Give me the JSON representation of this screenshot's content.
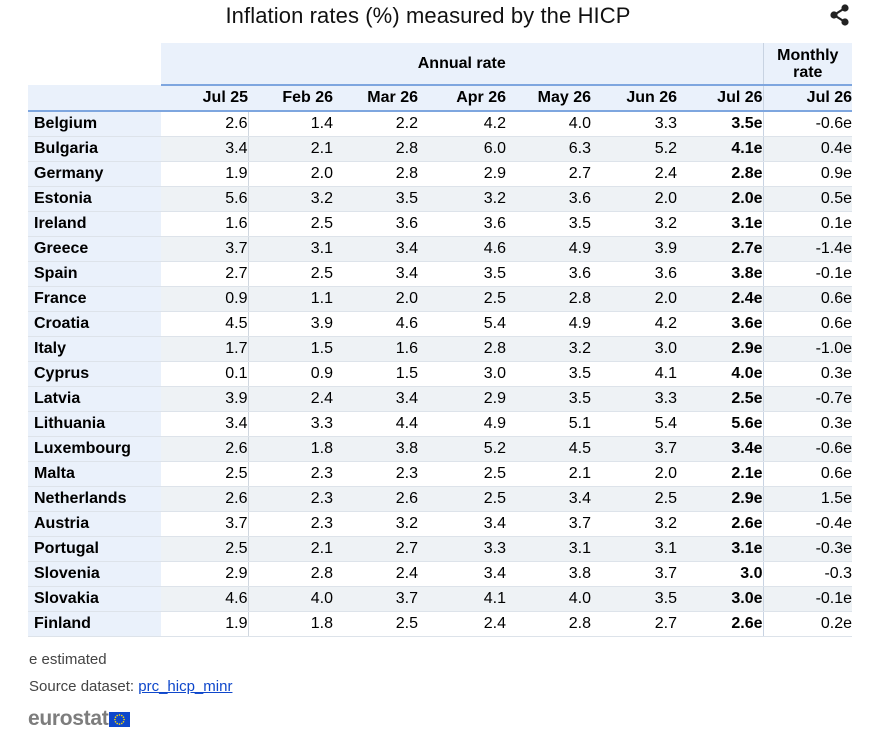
{
  "title": "Inflation rates (%) measured by the HICP",
  "share_icon": "share-icon",
  "table": {
    "group_annual": "Annual rate",
    "group_monthly": "Monthly rate",
    "columns": [
      "Jul 25",
      "Feb 26",
      "Mar 26",
      "Apr 26",
      "May 26",
      "Jun 26",
      "Jul 26",
      "Jul 26"
    ],
    "rows": [
      {
        "country": "Belgium",
        "values": [
          "2.6",
          "1.4",
          "2.2",
          "4.2",
          "4.0",
          "3.3",
          "3.5e",
          "-0.6e"
        ]
      },
      {
        "country": "Bulgaria",
        "values": [
          "3.4",
          "2.1",
          "2.8",
          "6.0",
          "6.3",
          "5.2",
          "4.1e",
          "0.4e"
        ]
      },
      {
        "country": "Germany",
        "values": [
          "1.9",
          "2.0",
          "2.8",
          "2.9",
          "2.7",
          "2.4",
          "2.8e",
          "0.9e"
        ]
      },
      {
        "country": "Estonia",
        "values": [
          "5.6",
          "3.2",
          "3.5",
          "3.2",
          "3.6",
          "2.0",
          "2.0e",
          "0.5e"
        ]
      },
      {
        "country": "Ireland",
        "values": [
          "1.6",
          "2.5",
          "3.6",
          "3.6",
          "3.5",
          "3.2",
          "3.1e",
          "0.1e"
        ]
      },
      {
        "country": "Greece",
        "values": [
          "3.7",
          "3.1",
          "3.4",
          "4.6",
          "4.9",
          "3.9",
          "2.7e",
          "-1.4e"
        ]
      },
      {
        "country": "Spain",
        "values": [
          "2.7",
          "2.5",
          "3.4",
          "3.5",
          "3.6",
          "3.6",
          "3.8e",
          "-0.1e"
        ]
      },
      {
        "country": "France",
        "values": [
          "0.9",
          "1.1",
          "2.0",
          "2.5",
          "2.8",
          "2.0",
          "2.4e",
          "0.6e"
        ]
      },
      {
        "country": "Croatia",
        "values": [
          "4.5",
          "3.9",
          "4.6",
          "5.4",
          "4.9",
          "4.2",
          "3.6e",
          "0.6e"
        ]
      },
      {
        "country": "Italy",
        "values": [
          "1.7",
          "1.5",
          "1.6",
          "2.8",
          "3.2",
          "3.0",
          "2.9e",
          "-1.0e"
        ]
      },
      {
        "country": "Cyprus",
        "values": [
          "0.1",
          "0.9",
          "1.5",
          "3.0",
          "3.5",
          "4.1",
          "4.0e",
          "0.3e"
        ]
      },
      {
        "country": "Latvia",
        "values": [
          "3.9",
          "2.4",
          "3.4",
          "2.9",
          "3.5",
          "3.3",
          "2.5e",
          "-0.7e"
        ]
      },
      {
        "country": "Lithuania",
        "values": [
          "3.4",
          "3.3",
          "4.4",
          "4.9",
          "5.1",
          "5.4",
          "5.6e",
          "0.3e"
        ]
      },
      {
        "country": "Luxembourg",
        "values": [
          "2.6",
          "1.8",
          "3.8",
          "5.2",
          "4.5",
          "3.7",
          "3.4e",
          "-0.6e"
        ]
      },
      {
        "country": "Malta",
        "values": [
          "2.5",
          "2.3",
          "2.3",
          "2.5",
          "2.1",
          "2.0",
          "2.1e",
          "0.6e"
        ]
      },
      {
        "country": "Netherlands",
        "values": [
          "2.6",
          "2.3",
          "2.6",
          "2.5",
          "3.4",
          "2.5",
          "2.9e",
          "1.5e"
        ]
      },
      {
        "country": "Austria",
        "values": [
          "3.7",
          "2.3",
          "3.2",
          "3.4",
          "3.7",
          "3.2",
          "2.6e",
          "-0.4e"
        ]
      },
      {
        "country": "Portugal",
        "values": [
          "2.5",
          "2.1",
          "2.7",
          "3.3",
          "3.1",
          "3.1",
          "3.1e",
          "-0.3e"
        ]
      },
      {
        "country": "Slovenia",
        "values": [
          "2.9",
          "2.8",
          "2.4",
          "3.4",
          "3.8",
          "3.7",
          "3.0",
          "-0.3"
        ]
      },
      {
        "country": "Slovakia",
        "values": [
          "4.6",
          "4.0",
          "3.7",
          "4.1",
          "4.0",
          "3.5",
          "3.0e",
          "-0.1e"
        ]
      },
      {
        "country": "Finland",
        "values": [
          "1.9",
          "1.8",
          "2.5",
          "2.4",
          "2.8",
          "2.7",
          "2.6e",
          "0.2e"
        ]
      }
    ]
  },
  "chart_data": {
    "type": "table",
    "title": "Inflation rates (%) measured by the HICP",
    "column_groups": [
      {
        "name": "Annual rate",
        "columns": [
          "Jul 25",
          "Feb 26",
          "Mar 26",
          "Apr 26",
          "May 26",
          "Jun 26",
          "Jul 26"
        ]
      },
      {
        "name": "Monthly rate",
        "columns": [
          "Jul 26"
        ]
      }
    ],
    "row_labels": [
      "Belgium",
      "Bulgaria",
      "Germany",
      "Estonia",
      "Ireland",
      "Greece",
      "Spain",
      "France",
      "Croatia",
      "Italy",
      "Cyprus",
      "Latvia",
      "Lithuania",
      "Luxembourg",
      "Malta",
      "Netherlands",
      "Austria",
      "Portugal",
      "Slovenia",
      "Slovakia",
      "Finland"
    ],
    "flag_note": "e estimated"
  },
  "footer": {
    "note": "e estimated",
    "source_prefix": "Source dataset: ",
    "source_link": "prc_hicp_minr",
    "logo_text": "eurostat"
  },
  "colors": {
    "header_bg": "#eaf1fb",
    "header_rule": "#7ea6df",
    "stripe": "#eef2f5",
    "link": "#0e47cb",
    "logo_text": "#7d7d7d",
    "eu_blue": "#0e47cb",
    "eu_star": "#ffdd00"
  }
}
